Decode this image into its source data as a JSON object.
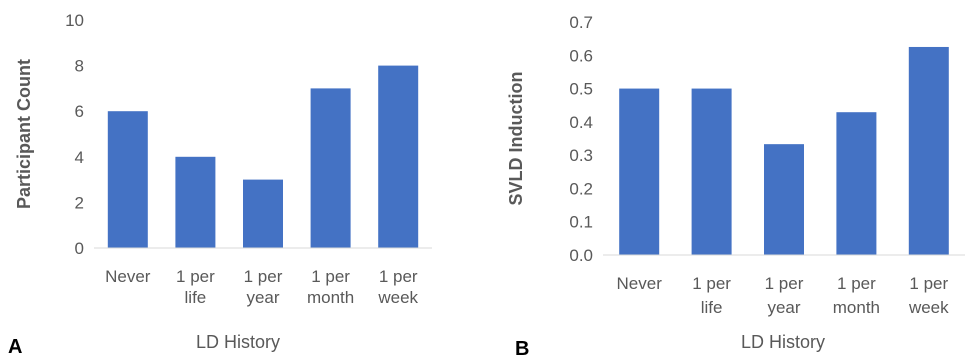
{
  "chart_data": [
    {
      "type": "bar",
      "panel": "A",
      "categories": [
        [
          "Never"
        ],
        [
          "1 per",
          "life"
        ],
        [
          "1 per",
          "year"
        ],
        [
          "1 per",
          "month"
        ],
        [
          "1 per",
          "week"
        ]
      ],
      "values": [
        6,
        4,
        3,
        7,
        8
      ],
      "title": "",
      "xlabel": "LD History",
      "ylabel": "Participant Count",
      "ylim": [
        0,
        10
      ],
      "yticks": [
        "0",
        "2",
        "4",
        "6",
        "8",
        "10"
      ],
      "bar_color": "#4472C4",
      "grid": false
    },
    {
      "type": "bar",
      "panel": "B",
      "categories": [
        [
          "Never"
        ],
        [
          "1 per",
          "life"
        ],
        [
          "1 per",
          "year"
        ],
        [
          "1 per",
          "month"
        ],
        [
          "1 per",
          "week"
        ]
      ],
      "values": [
        0.5,
        0.5,
        0.333,
        0.429,
        0.625
      ],
      "title": "",
      "xlabel": "LD History",
      "ylabel": "SVLD Induction",
      "ylim": [
        0,
        0.7
      ],
      "yticks": [
        "0.0",
        "0.1",
        "0.2",
        "0.3",
        "0.4",
        "0.5",
        "0.6",
        "0.7"
      ],
      "bar_color": "#4472C4",
      "grid": false
    }
  ]
}
